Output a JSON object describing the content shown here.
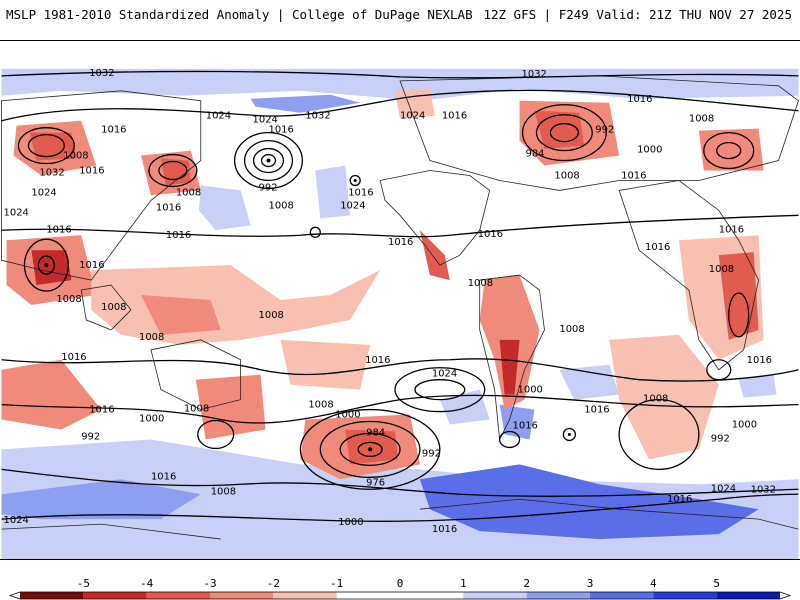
{
  "header": {
    "left": "MSLP 1981-2010 Standardized Anomaly | College of DuPage NEXLAB",
    "right": "12Z GFS | F249 Valid: 21Z THU NOV 27 2025"
  },
  "isobar_labels": [
    "1032",
    "1032",
    "1024",
    "1024",
    "1032",
    "1016",
    "1016",
    "1008",
    "1032",
    "1016",
    "1008",
    "1024",
    "1024",
    "1016",
    "1016",
    "1008",
    "992",
    "1016",
    "1024",
    "1016",
    "1008",
    "1016",
    "1024",
    "984",
    "992",
    "1000",
    "1008",
    "1008",
    "1016",
    "1016",
    "1016",
    "1016",
    "1008",
    "1008",
    "1016",
    "1008",
    "1016",
    "1016",
    "1008",
    "1024",
    "1008",
    "1008",
    "1016",
    "1000",
    "1016",
    "1016",
    "1000",
    "1008",
    "1000",
    "984",
    "992",
    "976",
    "992",
    "1008",
    "1016",
    "1016",
    "1008",
    "1016",
    "1000",
    "992",
    "1008",
    "1016",
    "1024",
    "1032",
    "1024",
    "1016",
    "1000",
    "1016"
  ],
  "colorbar": {
    "ticks": [
      "-5",
      "-4",
      "-3",
      "-2",
      "-1",
      "0",
      "1",
      "2",
      "3",
      "4",
      "5"
    ],
    "colors": [
      "#7a0a0a",
      "#c42a2a",
      "#e25b4f",
      "#f08a7a",
      "#f8c0b0",
      "#ffffff",
      "#ffffff",
      "#c8d0f8",
      "#8f9ff0",
      "#5a6ee8",
      "#2a3ad8",
      "#0a1ab0"
    ]
  }
}
